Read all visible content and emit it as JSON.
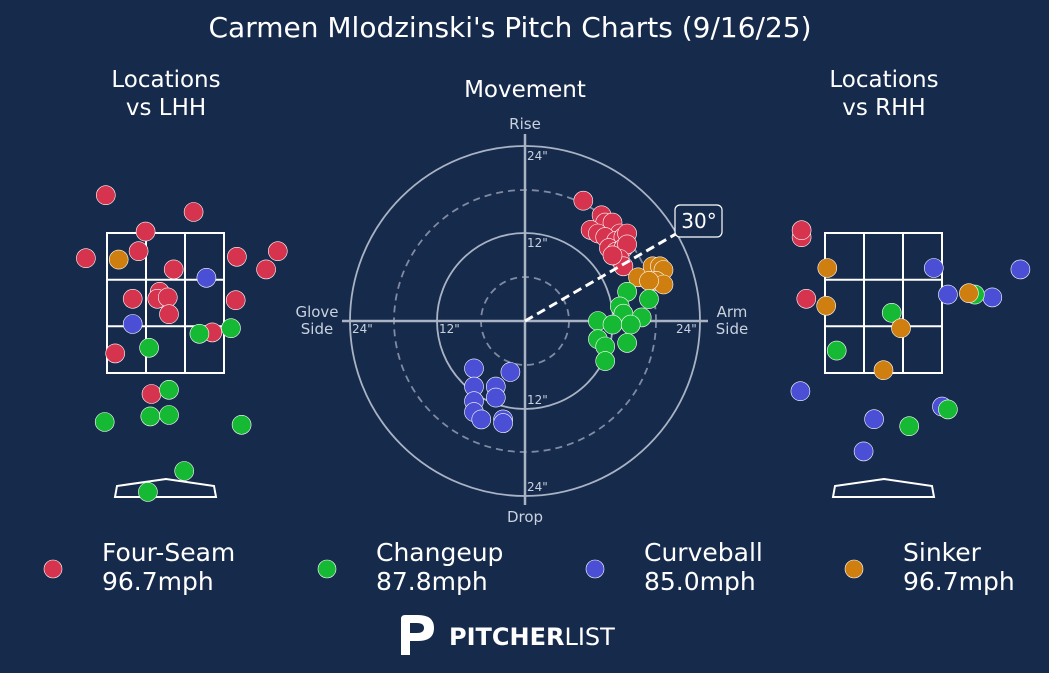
{
  "title": "Carmen Mlodzinski's Pitch Charts (9/16/25)",
  "colors": {
    "background": "#162a4c",
    "Four-Seam": "#d6344e",
    "Changeup": "#16b933",
    "Curveball": "#4a4fd6",
    "Sinker": "#cf7f0f"
  },
  "panels": {
    "lhh_title": [
      "Locations",
      "vs LHH"
    ],
    "movement_title": "Movement",
    "rhh_title": [
      "Locations",
      "vs RHH"
    ]
  },
  "movement_axes": {
    "top": "Rise",
    "bottom": "Drop",
    "left": [
      "Glove",
      "Side"
    ],
    "right": [
      "Arm",
      "Side"
    ],
    "ring_labels": [
      "24\"",
      "12\"",
      "12\"",
      "24\"",
      "12\"",
      "24\"",
      "24\""
    ],
    "arm_angle_label": "30°"
  },
  "legend": [
    {
      "pitch": "Four-Seam",
      "velo": "96.7mph",
      "icon": "circle-marker"
    },
    {
      "pitch": "Changeup",
      "velo": "87.8mph",
      "icon": "circle-marker"
    },
    {
      "pitch": "Curveball",
      "velo": "85.0mph",
      "icon": "circle-marker"
    },
    {
      "pitch": "Sinker",
      "velo": "96.7mph",
      "icon": "circle-marker"
    }
  ],
  "brand": {
    "bold": "PITCHER",
    "light": "LIST",
    "icon": "pitcherlist-logo-icon"
  },
  "chart_data": [
    {
      "type": "scatter",
      "name": "lhh_locations",
      "units": "zone widths from plate center (x) and zone heights (y, 0=bottom, 1=top of zone)",
      "points": [
        {
          "pitch": "Four-Seam",
          "x": -0.51,
          "y": 1.27
        },
        {
          "pitch": "Four-Seam",
          "x": 0.24,
          "y": 1.15
        },
        {
          "pitch": "Four-Seam",
          "x": -0.17,
          "y": 1.01
        },
        {
          "pitch": "Four-Seam",
          "x": -0.23,
          "y": 0.87
        },
        {
          "pitch": "Four-Seam",
          "x": -0.68,
          "y": 0.82
        },
        {
          "pitch": "Four-Seam",
          "x": 0.61,
          "y": 0.83
        },
        {
          "pitch": "Four-Seam",
          "x": 0.07,
          "y": 0.74
        },
        {
          "pitch": "Four-Seam",
          "x": 0.86,
          "y": 0.74
        },
        {
          "pitch": "Four-Seam",
          "x": 0.96,
          "y": 0.87
        },
        {
          "pitch": "Four-Seam",
          "x": -0.28,
          "y": 0.53
        },
        {
          "pitch": "Four-Seam",
          "x": -0.05,
          "y": 0.58
        },
        {
          "pitch": "Four-Seam",
          "x": -0.07,
          "y": 0.53
        },
        {
          "pitch": "Four-Seam",
          "x": 0.02,
          "y": 0.54
        },
        {
          "pitch": "Four-Seam",
          "x": 0.6,
          "y": 0.52
        },
        {
          "pitch": "Four-Seam",
          "x": 0.03,
          "y": 0.42
        },
        {
          "pitch": "Four-Seam",
          "x": 0.4,
          "y": 0.29
        },
        {
          "pitch": "Four-Seam",
          "x": -0.43,
          "y": 0.14
        },
        {
          "pitch": "Four-Seam",
          "x": -0.12,
          "y": -0.15
        },
        {
          "pitch": "Changeup",
          "x": 0.56,
          "y": 0.32
        },
        {
          "pitch": "Changeup",
          "x": 0.29,
          "y": 0.28
        },
        {
          "pitch": "Changeup",
          "x": -0.14,
          "y": 0.18
        },
        {
          "pitch": "Changeup",
          "x": 0.03,
          "y": -0.12
        },
        {
          "pitch": "Changeup",
          "x": -0.13,
          "y": -0.31
        },
        {
          "pitch": "Changeup",
          "x": 0.03,
          "y": -0.3
        },
        {
          "pitch": "Changeup",
          "x": -0.52,
          "y": -0.35
        },
        {
          "pitch": "Changeup",
          "x": 0.65,
          "y": -0.37
        },
        {
          "pitch": "Changeup",
          "x": 0.16,
          "y": -0.7
        },
        {
          "pitch": "Changeup",
          "x": -0.15,
          "y": -0.85
        },
        {
          "pitch": "Curveball",
          "x": 0.35,
          "y": 0.68
        },
        {
          "pitch": "Curveball",
          "x": -0.28,
          "y": 0.35
        },
        {
          "pitch": "Sinker",
          "x": -0.4,
          "y": 0.81
        }
      ]
    },
    {
      "type": "scatter",
      "name": "movement",
      "units": "inches of break (x: negative=glove side, positive=arm side; y: positive=rise)",
      "points": [
        {
          "pitch": "Four-Seam",
          "x": 8.0,
          "y": 16.5
        },
        {
          "pitch": "Four-Seam",
          "x": 10.5,
          "y": 14.5
        },
        {
          "pitch": "Four-Seam",
          "x": 11.0,
          "y": 13.5
        },
        {
          "pitch": "Four-Seam",
          "x": 12.0,
          "y": 13.5
        },
        {
          "pitch": "Four-Seam",
          "x": 13.0,
          "y": 12.0
        },
        {
          "pitch": "Four-Seam",
          "x": 9.0,
          "y": 12.5
        },
        {
          "pitch": "Four-Seam",
          "x": 10.0,
          "y": 12.0
        },
        {
          "pitch": "Four-Seam",
          "x": 11.0,
          "y": 11.5
        },
        {
          "pitch": "Four-Seam",
          "x": 12.5,
          "y": 11.0
        },
        {
          "pitch": "Four-Seam",
          "x": 13.5,
          "y": 11.5
        },
        {
          "pitch": "Four-Seam",
          "x": 14.0,
          "y": 12.0
        },
        {
          "pitch": "Four-Seam",
          "x": 11.5,
          "y": 10.0
        },
        {
          "pitch": "Four-Seam",
          "x": 12.5,
          "y": 9.5
        },
        {
          "pitch": "Four-Seam",
          "x": 13.5,
          "y": 10.0
        },
        {
          "pitch": "Four-Seam",
          "x": 14.0,
          "y": 10.5
        },
        {
          "pitch": "Four-Seam",
          "x": 13.0,
          "y": 8.5
        },
        {
          "pitch": "Four-Seam",
          "x": 13.5,
          "y": 7.5
        },
        {
          "pitch": "Four-Seam",
          "x": 12.0,
          "y": 9.0
        },
        {
          "pitch": "Sinker",
          "x": 15.5,
          "y": 6.0
        },
        {
          "pitch": "Sinker",
          "x": 17.5,
          "y": 7.5
        },
        {
          "pitch": "Sinker",
          "x": 18.5,
          "y": 7.5
        },
        {
          "pitch": "Sinker",
          "x": 19.0,
          "y": 7.0
        },
        {
          "pitch": "Sinker",
          "x": 18.0,
          "y": 5.5
        },
        {
          "pitch": "Sinker",
          "x": 19.0,
          "y": 5.0
        },
        {
          "pitch": "Sinker",
          "x": 17.0,
          "y": 5.5
        },
        {
          "pitch": "Changeup",
          "x": 14.0,
          "y": 4.0
        },
        {
          "pitch": "Changeup",
          "x": 17.0,
          "y": 3.0
        },
        {
          "pitch": "Changeup",
          "x": 13.0,
          "y": 2.0
        },
        {
          "pitch": "Changeup",
          "x": 13.5,
          "y": 1.0
        },
        {
          "pitch": "Changeup",
          "x": 16.0,
          "y": 0.5
        },
        {
          "pitch": "Changeup",
          "x": 10.0,
          "y": 0.0
        },
        {
          "pitch": "Changeup",
          "x": 12.0,
          "y": -0.5
        },
        {
          "pitch": "Changeup",
          "x": 14.5,
          "y": -0.5
        },
        {
          "pitch": "Changeup",
          "x": 10.0,
          "y": -2.5
        },
        {
          "pitch": "Changeup",
          "x": 11.0,
          "y": -3.5
        },
        {
          "pitch": "Changeup",
          "x": 14.0,
          "y": -3.0
        },
        {
          "pitch": "Changeup",
          "x": 11.0,
          "y": -5.5
        },
        {
          "pitch": "Curveball",
          "x": -7.0,
          "y": -6.5
        },
        {
          "pitch": "Curveball",
          "x": -2.0,
          "y": -7.0
        },
        {
          "pitch": "Curveball",
          "x": -7.0,
          "y": -9.0
        },
        {
          "pitch": "Curveball",
          "x": -4.0,
          "y": -9.0
        },
        {
          "pitch": "Curveball",
          "x": -4.0,
          "y": -10.5
        },
        {
          "pitch": "Curveball",
          "x": -7.0,
          "y": -11.0
        },
        {
          "pitch": "Curveball",
          "x": -7.0,
          "y": -12.5
        },
        {
          "pitch": "Curveball",
          "x": -6.0,
          "y": -13.5
        },
        {
          "pitch": "Curveball",
          "x": -3.0,
          "y": -13.5
        },
        {
          "pitch": "Curveball",
          "x": -3.0,
          "y": -14.0
        }
      ],
      "rings": [
        6,
        12,
        18,
        24
      ],
      "axis_range": [
        -24,
        24
      ],
      "arm_angle_deg": 30
    },
    {
      "type": "scatter",
      "name": "rhh_locations",
      "units": "zone widths from plate center (x) and zone heights (y, 0=bottom, 1=top of zone)",
      "points": [
        {
          "pitch": "Four-Seam",
          "x": -0.7,
          "y": 0.97
        },
        {
          "pitch": "Four-Seam",
          "x": -0.7,
          "y": 1.02
        },
        {
          "pitch": "Four-Seam",
          "x": -0.66,
          "y": 0.53
        },
        {
          "pitch": "Curveball",
          "x": 1.17,
          "y": 0.74
        },
        {
          "pitch": "Curveball",
          "x": 0.43,
          "y": 0.75
        },
        {
          "pitch": "Curveball",
          "x": 0.55,
          "y": 0.56
        },
        {
          "pitch": "Curveball",
          "x": 0.93,
          "y": 0.54
        },
        {
          "pitch": "Curveball",
          "x": -0.71,
          "y": -0.13
        },
        {
          "pitch": "Curveball",
          "x": -0.08,
          "y": -0.33
        },
        {
          "pitch": "Curveball",
          "x": 0.5,
          "y": -0.24
        },
        {
          "pitch": "Curveball",
          "x": -0.17,
          "y": -0.56
        },
        {
          "pitch": "Changeup",
          "x": 0.07,
          "y": 0.43
        },
        {
          "pitch": "Changeup",
          "x": 0.78,
          "y": 0.56
        },
        {
          "pitch": "Changeup",
          "x": -0.4,
          "y": 0.16
        },
        {
          "pitch": "Changeup",
          "x": 0.55,
          "y": -0.26
        },
        {
          "pitch": "Changeup",
          "x": 0.22,
          "y": -0.38
        },
        {
          "pitch": "Sinker",
          "x": -0.48,
          "y": 0.75
        },
        {
          "pitch": "Sinker",
          "x": -0.49,
          "y": 0.48
        },
        {
          "pitch": "Sinker",
          "x": 0.73,
          "y": 0.57
        },
        {
          "pitch": "Sinker",
          "x": 0.15,
          "y": 0.32
        },
        {
          "pitch": "Sinker",
          "x": 0.0,
          "y": 0.02
        }
      ]
    }
  ]
}
